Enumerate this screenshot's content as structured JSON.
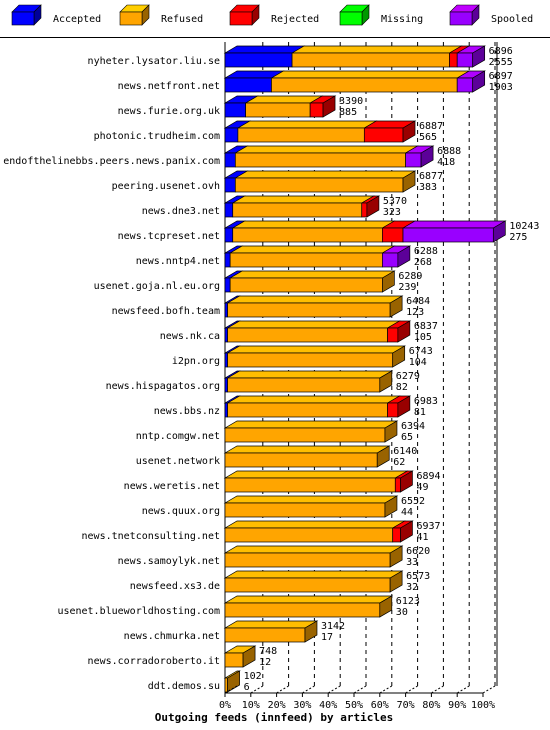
{
  "chart_data": {
    "type": "bar",
    "orientation": "horizontal",
    "stacked": true,
    "xlabel": "Outgoing feeds (innfeed) by articles",
    "xlim": [
      0,
      100
    ],
    "x_ticks": [
      "0%",
      "10%",
      "20%",
      "30%",
      "40%",
      "50%",
      "60%",
      "70%",
      "80%",
      "90%",
      "100%"
    ],
    "legend_position": "top",
    "series": [
      {
        "name": "Accepted",
        "color": "#0000ff"
      },
      {
        "name": "Refused",
        "color": "#ffa500"
      },
      {
        "name": "Rejected",
        "color": "#ff0000"
      },
      {
        "name": "Missing",
        "color": "#00ff00"
      },
      {
        "name": "Spooled",
        "color": "#9900ff"
      }
    ],
    "categories": [
      {
        "name": "nyheter.lysator.liu.se",
        "total": "6896",
        "second": "2555",
        "pct": [
          26,
          61,
          3,
          0,
          6
        ]
      },
      {
        "name": "news.netfront.net",
        "total": "6897",
        "second": "1903",
        "pct": [
          18,
          72,
          0,
          0,
          6
        ]
      },
      {
        "name": "news.furie.org.uk",
        "total": "3390",
        "second": "885",
        "pct": [
          8,
          25,
          5,
          0,
          0
        ]
      },
      {
        "name": "photonic.trudheim.com",
        "total": "6887",
        "second": "565",
        "pct": [
          5,
          49,
          15,
          0,
          0
        ]
      },
      {
        "name": "endofthelinebbs.peers.news.panix.com",
        "total": "6888",
        "second": "418",
        "pct": [
          4,
          66,
          0,
          0,
          6
        ]
      },
      {
        "name": "peering.usenet.ovh",
        "total": "6877",
        "second": "383",
        "pct": [
          4,
          65,
          0,
          0,
          0
        ]
      },
      {
        "name": "news.dne3.net",
        "total": "5370",
        "second": "323",
        "pct": [
          3,
          50,
          2,
          0,
          0
        ]
      },
      {
        "name": "news.tcpreset.net",
        "total": "10243",
        "second": "275",
        "pct": [
          3,
          58,
          8,
          0,
          35
        ]
      },
      {
        "name": "news.nntp4.net",
        "total": "6288",
        "second": "268",
        "pct": [
          2,
          59,
          0,
          0,
          6
        ]
      },
      {
        "name": "usenet.goja.nl.eu.org",
        "total": "6289",
        "second": "239",
        "pct": [
          2,
          59,
          0,
          0,
          0
        ]
      },
      {
        "name": "newsfeed.bofh.team",
        "total": "6484",
        "second": "123",
        "pct": [
          1,
          63,
          0,
          0,
          0
        ]
      },
      {
        "name": "news.nk.ca",
        "total": "6837",
        "second": "105",
        "pct": [
          1,
          62,
          4,
          0,
          0
        ]
      },
      {
        "name": "i2pn.org",
        "total": "6743",
        "second": "104",
        "pct": [
          1,
          64,
          0,
          0,
          0
        ]
      },
      {
        "name": "news.hispagatos.org",
        "total": "6279",
        "second": "82",
        "pct": [
          1,
          59,
          0,
          0,
          0
        ]
      },
      {
        "name": "news.bbs.nz",
        "total": "6983",
        "second": "81",
        "pct": [
          1,
          62,
          4,
          0,
          0
        ]
      },
      {
        "name": "nntp.comgw.net",
        "total": "6394",
        "second": "65",
        "pct": [
          0,
          62,
          0,
          0,
          0
        ]
      },
      {
        "name": "usenet.network",
        "total": "6140",
        "second": "62",
        "pct": [
          0,
          59,
          0,
          0,
          0
        ]
      },
      {
        "name": "news.weretis.net",
        "total": "6894",
        "second": "49",
        "pct": [
          0,
          66,
          2,
          0,
          0
        ]
      },
      {
        "name": "news.quux.org",
        "total": "6552",
        "second": "44",
        "pct": [
          0,
          62,
          0,
          0,
          0
        ]
      },
      {
        "name": "news.tnetconsulting.net",
        "total": "6937",
        "second": "41",
        "pct": [
          0,
          65,
          3,
          0,
          0
        ]
      },
      {
        "name": "news.samoylyk.net",
        "total": "6620",
        "second": "33",
        "pct": [
          0,
          64,
          0,
          0,
          0
        ]
      },
      {
        "name": "newsfeed.xs3.de",
        "total": "6573",
        "second": "32",
        "pct": [
          0,
          64,
          0,
          0,
          0
        ]
      },
      {
        "name": "usenet.blueworldhosting.com",
        "total": "6123",
        "second": "30",
        "pct": [
          0,
          60,
          0,
          0,
          0
        ]
      },
      {
        "name": "news.chmurka.net",
        "total": "3142",
        "second": "17",
        "pct": [
          0,
          31,
          0,
          0,
          0
        ]
      },
      {
        "name": "news.corradoroberto.it",
        "total": "748",
        "second": "12",
        "pct": [
          0,
          7,
          0,
          0,
          0
        ]
      },
      {
        "name": "ddt.demos.su",
        "total": "102",
        "second": "6",
        "pct": [
          0,
          1,
          0,
          0,
          0
        ]
      }
    ]
  }
}
